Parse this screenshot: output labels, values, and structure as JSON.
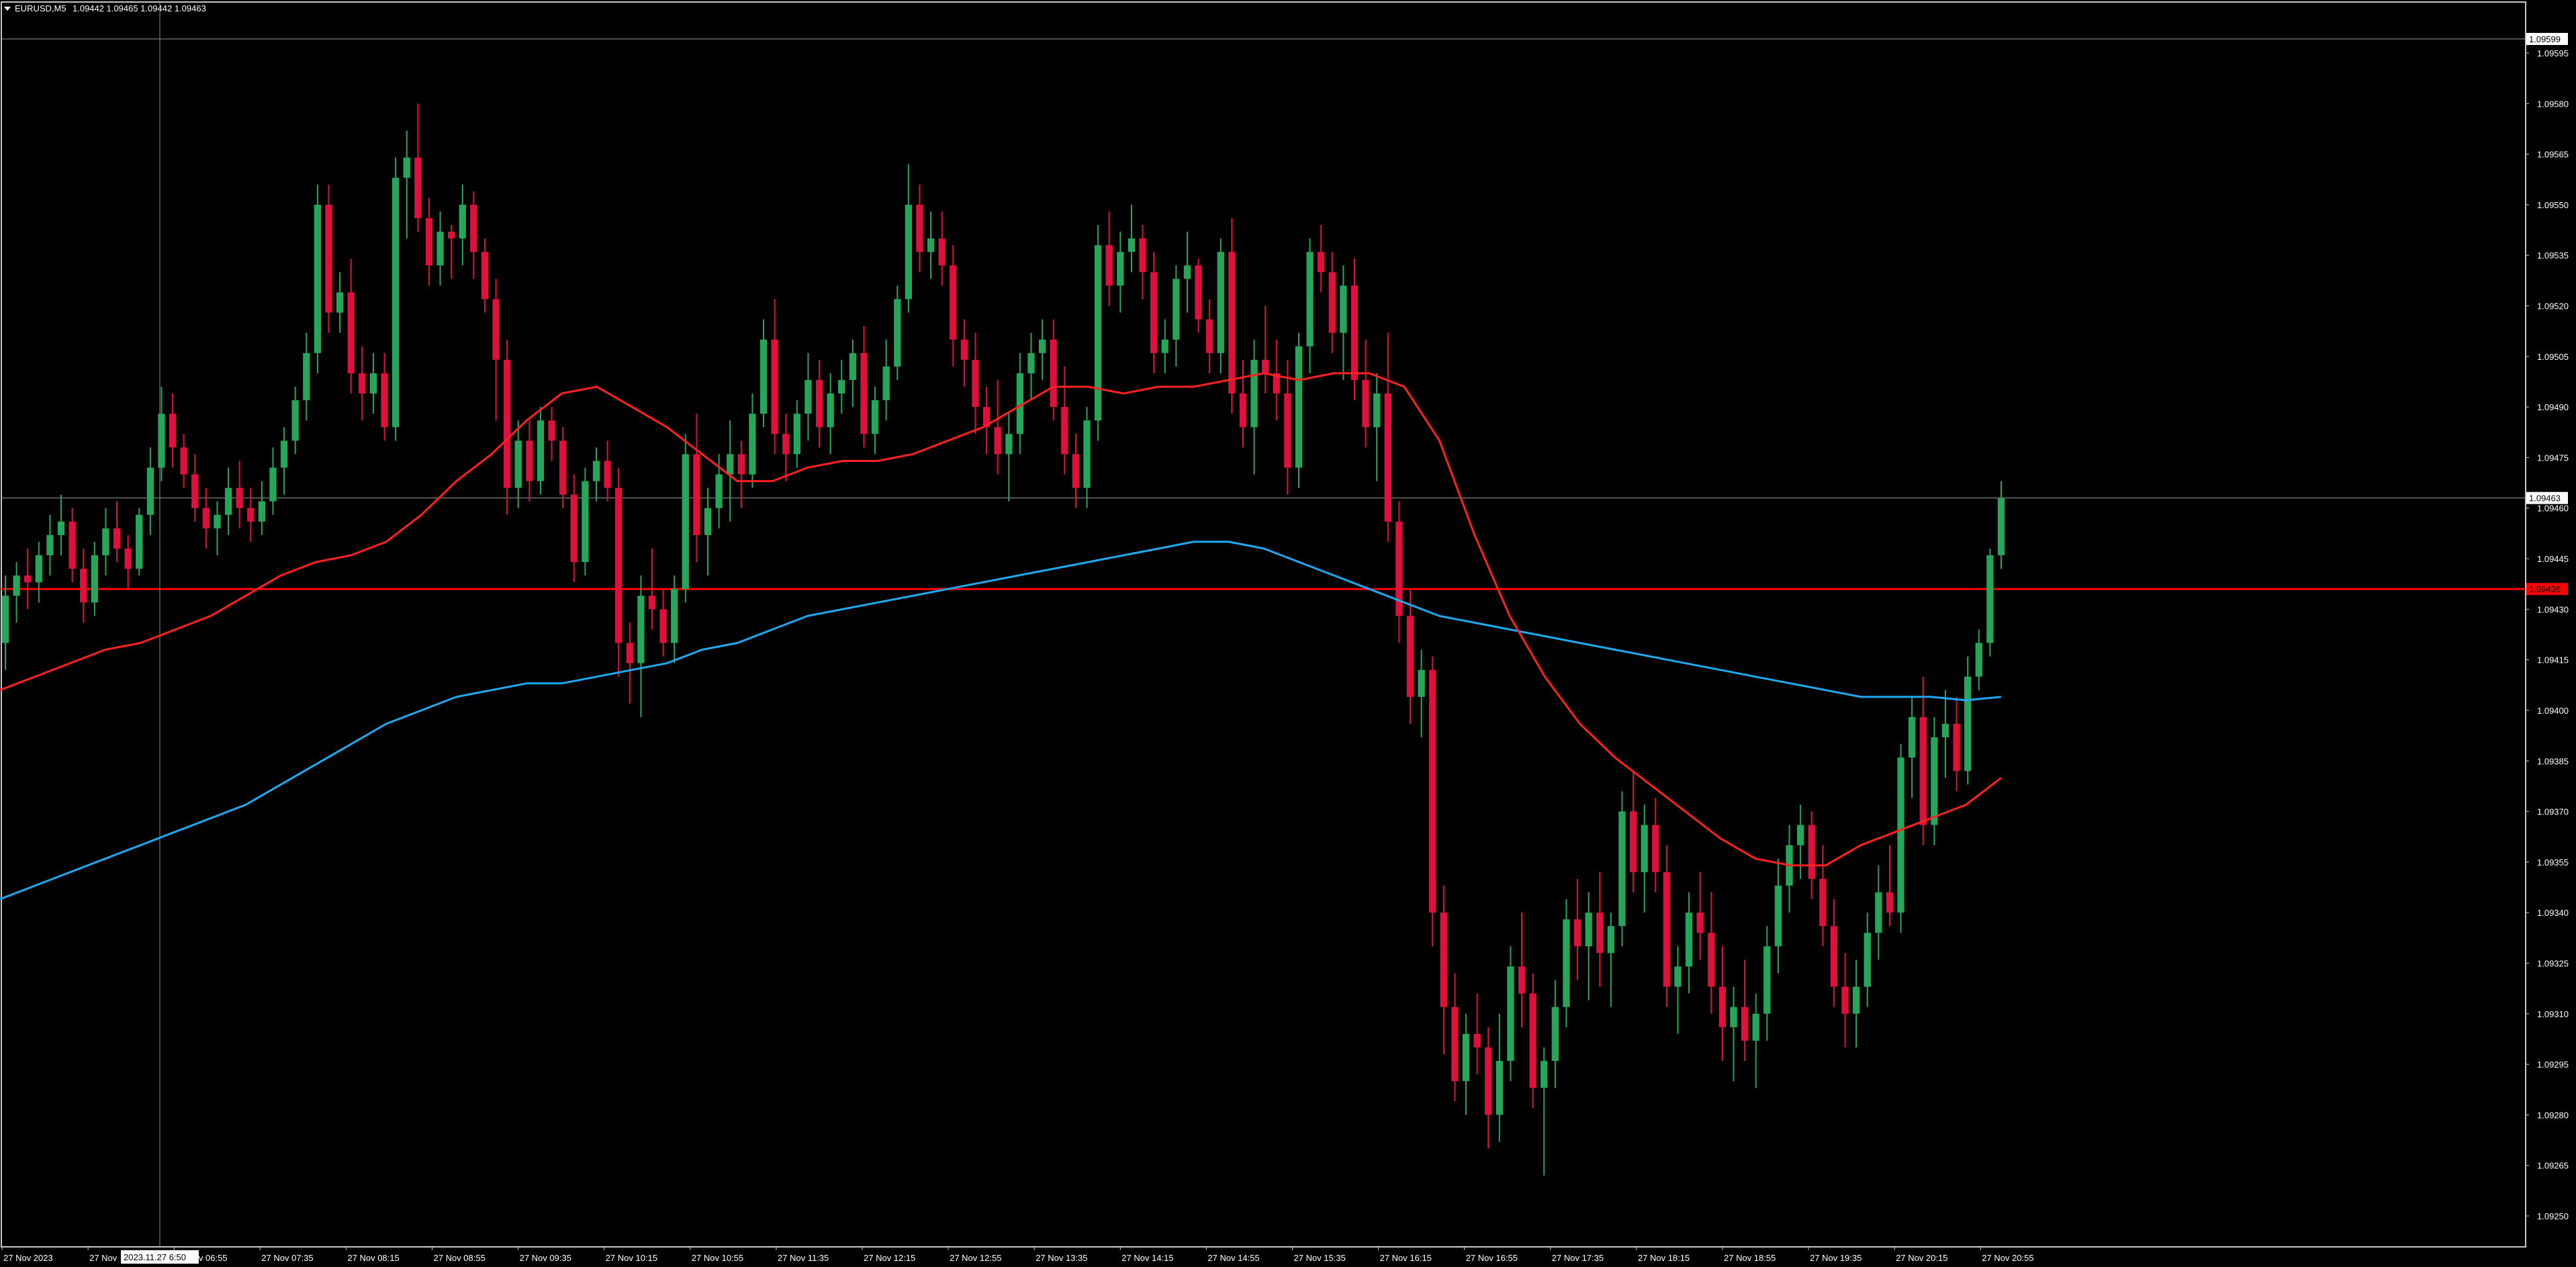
{
  "header": {
    "symbol": "EURUSD,M5",
    "ohlc": "1.09442 1.09465 1.09442 1.09463"
  },
  "colors": {
    "background": "#000000",
    "bull": "#26a65b",
    "bear": "#e0103c",
    "ma_fast": "#ff2020",
    "ma_slow": "#1eaaf0",
    "hline": "#ff0000",
    "grid_text": "#ffffff",
    "crosshair": "#8c8c8c"
  },
  "chart_data": {
    "type": "candlestick",
    "symbol": "EURUSD",
    "timeframe": "M5",
    "ylim": [
      1.09244,
      1.09602
    ],
    "y_ticks": [
      "1.09595",
      "1.09580",
      "1.09565",
      "1.09550",
      "1.09535",
      "1.09520",
      "1.09505",
      "1.09490",
      "1.09475",
      "1.09460",
      "1.09445",
      "1.09430",
      "1.09415",
      "1.09400",
      "1.09385",
      "1.09370",
      "1.09355",
      "1.09340",
      "1.09325",
      "1.09310",
      "1.09295",
      "1.09280",
      "1.09265",
      "1.09250"
    ],
    "x_ticks": [
      "27 Nov 2023",
      "27 Nov",
      "27 Nov 06:55",
      "27 Nov 07:35",
      "27 Nov 08:15",
      "27 Nov 08:55",
      "27 Nov 09:35",
      "27 Nov 10:15",
      "27 Nov 10:55",
      "27 Nov 11:35",
      "27 Nov 12:15",
      "27 Nov 12:55",
      "27 Nov 13:35",
      "27 Nov 14:15",
      "27 Nov 14:55",
      "27 Nov 15:35",
      "27 Nov 16:15",
      "27 Nov 16:55",
      "27 Nov 17:35",
      "27 Nov 18:15",
      "27 Nov 18:55",
      "27 Nov 19:35",
      "27 Nov 20:15",
      "27 Nov 20:55"
    ],
    "price_labels": {
      "top": "1.09599",
      "current": "1.09463",
      "hline": "1.09436"
    },
    "hline_price": 1.09436,
    "current_price": 1.09463,
    "crosshair_time": "2023.11.27 6:50",
    "candles": [
      [
        1.0942,
        1.0944,
        1.09412,
        1.09434
      ],
      [
        1.09434,
        1.09444,
        1.09426,
        1.0944
      ],
      [
        1.0944,
        1.09448,
        1.0943,
        1.09438
      ],
      [
        1.09438,
        1.0945,
        1.09432,
        1.09446
      ],
      [
        1.09446,
        1.09458,
        1.0944,
        1.09452
      ],
      [
        1.09452,
        1.09464,
        1.09446,
        1.09456
      ],
      [
        1.09456,
        1.0946,
        1.09438,
        1.09442
      ],
      [
        1.09442,
        1.09448,
        1.09426,
        1.09432
      ],
      [
        1.09432,
        1.0945,
        1.09428,
        1.09446
      ],
      [
        1.09446,
        1.0946,
        1.0944,
        1.09454
      ],
      [
        1.09454,
        1.09462,
        1.09444,
        1.09448
      ],
      [
        1.09448,
        1.09452,
        1.09436,
        1.09442
      ],
      [
        1.09442,
        1.0946,
        1.0944,
        1.09458
      ],
      [
        1.09458,
        1.09478,
        1.09452,
        1.09472
      ],
      [
        1.09472,
        1.09496,
        1.09468,
        1.09488
      ],
      [
        1.09488,
        1.09494,
        1.09472,
        1.09478
      ],
      [
        1.09478,
        1.09482,
        1.09466,
        1.0947
      ],
      [
        1.0947,
        1.09476,
        1.09456,
        1.0946
      ],
      [
        1.0946,
        1.09466,
        1.09448,
        1.09454
      ],
      [
        1.09454,
        1.09462,
        1.09446,
        1.09458
      ],
      [
        1.09458,
        1.09472,
        1.09452,
        1.09466
      ],
      [
        1.09466,
        1.09474,
        1.09454,
        1.0946
      ],
      [
        1.0946,
        1.09466,
        1.0945,
        1.09456
      ],
      [
        1.09456,
        1.09468,
        1.09452,
        1.09462
      ],
      [
        1.09462,
        1.09478,
        1.09458,
        1.09472
      ],
      [
        1.09472,
        1.09484,
        1.09464,
        1.0948
      ],
      [
        1.0948,
        1.09496,
        1.09476,
        1.09492
      ],
      [
        1.09492,
        1.09512,
        1.09486,
        1.09506
      ],
      [
        1.09506,
        1.09556,
        1.095,
        1.0955
      ],
      [
        1.0955,
        1.09556,
        1.09512,
        1.09518
      ],
      [
        1.09518,
        1.0953,
        1.09512,
        1.09524
      ],
      [
        1.09524,
        1.09534,
        1.09494,
        1.095
      ],
      [
        1.095,
        1.09508,
        1.09486,
        1.09494
      ],
      [
        1.09494,
        1.09506,
        1.09488,
        1.095
      ],
      [
        1.095,
        1.09506,
        1.0948,
        1.09484
      ],
      [
        1.09484,
        1.09564,
        1.0948,
        1.09558
      ],
      [
        1.09558,
        1.09572,
        1.0954,
        1.09564
      ],
      [
        1.09564,
        1.0958,
        1.09542,
        1.09546
      ],
      [
        1.09546,
        1.09552,
        1.09526,
        1.09532
      ],
      [
        1.09532,
        1.09548,
        1.09526,
        1.09542
      ],
      [
        1.09542,
        1.09544,
        1.09528,
        1.0954
      ],
      [
        1.0954,
        1.09556,
        1.09532,
        1.0955
      ],
      [
        1.0955,
        1.09554,
        1.09528,
        1.09536
      ],
      [
        1.09536,
        1.0954,
        1.09518,
        1.09522
      ],
      [
        1.09522,
        1.09528,
        1.09486,
        1.09504
      ],
      [
        1.09504,
        1.0951,
        1.09458,
        1.09466
      ],
      [
        1.09466,
        1.09486,
        1.0946,
        1.0948
      ],
      [
        1.0948,
        1.09486,
        1.09462,
        1.09468
      ],
      [
        1.09468,
        1.0949,
        1.09464,
        1.09486
      ],
      [
        1.09486,
        1.0949,
        1.09474,
        1.0948
      ],
      [
        1.0948,
        1.09484,
        1.0946,
        1.09464
      ],
      [
        1.09464,
        1.0947,
        1.09438,
        1.09444
      ],
      [
        1.09444,
        1.09472,
        1.0944,
        1.09468
      ],
      [
        1.09468,
        1.09478,
        1.09462,
        1.09474
      ],
      [
        1.09474,
        1.0948,
        1.09462,
        1.09466
      ],
      [
        1.09466,
        1.09472,
        1.0941,
        1.0942
      ],
      [
        1.0942,
        1.09426,
        1.09402,
        1.09414
      ],
      [
        1.09414,
        1.0944,
        1.09398,
        1.09434
      ],
      [
        1.09434,
        1.09448,
        1.09424,
        1.0943
      ],
      [
        1.0943,
        1.09436,
        1.09416,
        1.0942
      ],
      [
        1.0942,
        1.0944,
        1.09414,
        1.09436
      ],
      [
        1.09436,
        1.09482,
        1.09432,
        1.09476
      ],
      [
        1.09476,
        1.09488,
        1.09444,
        1.09452
      ],
      [
        1.09452,
        1.09466,
        1.0944,
        1.0946
      ],
      [
        1.0946,
        1.09476,
        1.09454,
        1.0947
      ],
      [
        1.0947,
        1.09486,
        1.09456,
        1.09476
      ],
      [
        1.09476,
        1.0948,
        1.0946,
        1.0947
      ],
      [
        1.0947,
        1.09494,
        1.09466,
        1.09488
      ],
      [
        1.09488,
        1.09516,
        1.09484,
        1.0951
      ],
      [
        1.0951,
        1.09522,
        1.09476,
        1.09482
      ],
      [
        1.09482,
        1.09488,
        1.09468,
        1.09476
      ],
      [
        1.09476,
        1.09492,
        1.09472,
        1.09488
      ],
      [
        1.09488,
        1.09506,
        1.0948,
        1.09498
      ],
      [
        1.09498,
        1.09504,
        1.09478,
        1.09484
      ],
      [
        1.09484,
        1.095,
        1.09476,
        1.09494
      ],
      [
        1.09494,
        1.09504,
        1.09488,
        1.09498
      ],
      [
        1.09498,
        1.0951,
        1.0949,
        1.09506
      ],
      [
        1.09506,
        1.09514,
        1.09478,
        1.09482
      ],
      [
        1.09482,
        1.09496,
        1.09476,
        1.09492
      ],
      [
        1.09492,
        1.0951,
        1.09486,
        1.09502
      ],
      [
        1.09502,
        1.09526,
        1.09498,
        1.09522
      ],
      [
        1.09522,
        1.09562,
        1.09518,
        1.0955
      ],
      [
        1.0955,
        1.09556,
        1.0953,
        1.09536
      ],
      [
        1.09536,
        1.09548,
        1.09528,
        1.0954
      ],
      [
        1.0954,
        1.09548,
        1.09526,
        1.09532
      ],
      [
        1.09532,
        1.09538,
        1.09502,
        1.0951
      ],
      [
        1.0951,
        1.09516,
        1.09496,
        1.09504
      ],
      [
        1.09504,
        1.09512,
        1.09482,
        1.0949
      ],
      [
        1.0949,
        1.09496,
        1.09476,
        1.09484
      ],
      [
        1.09484,
        1.09498,
        1.0947,
        1.09476
      ],
      [
        1.09476,
        1.09488,
        1.09462,
        1.09482
      ],
      [
        1.09482,
        1.09506,
        1.09476,
        1.095
      ],
      [
        1.095,
        1.09512,
        1.09492,
        1.09506
      ],
      [
        1.09506,
        1.09516,
        1.09498,
        1.0951
      ],
      [
        1.0951,
        1.09516,
        1.09486,
        1.0949
      ],
      [
        1.0949,
        1.09502,
        1.0947,
        1.09476
      ],
      [
        1.09476,
        1.09482,
        1.0946,
        1.09466
      ],
      [
        1.09466,
        1.0949,
        1.0946,
        1.09486
      ],
      [
        1.09486,
        1.09544,
        1.0948,
        1.09538
      ],
      [
        1.09538,
        1.09548,
        1.0952,
        1.09526
      ],
      [
        1.09526,
        1.09542,
        1.09518,
        1.09536
      ],
      [
        1.09536,
        1.0955,
        1.0953,
        1.0954
      ],
      [
        1.0954,
        1.09544,
        1.09522,
        1.0953
      ],
      [
        1.0953,
        1.09536,
        1.095,
        1.09506
      ],
      [
        1.09506,
        1.09516,
        1.095,
        1.0951
      ],
      [
        1.0951,
        1.09532,
        1.09502,
        1.09528
      ],
      [
        1.09528,
        1.09542,
        1.09518,
        1.09532
      ],
      [
        1.09532,
        1.09534,
        1.09512,
        1.09516
      ],
      [
        1.09516,
        1.09522,
        1.095,
        1.09506
      ],
      [
        1.09506,
        1.0954,
        1.095,
        1.09536
      ],
      [
        1.09536,
        1.09546,
        1.09488,
        1.09494
      ],
      [
        1.09494,
        1.09504,
        1.09478,
        1.09484
      ],
      [
        1.09484,
        1.0951,
        1.0947,
        1.09504
      ],
      [
        1.09504,
        1.0952,
        1.09494,
        1.095
      ],
      [
        1.095,
        1.0951,
        1.09486,
        1.09494
      ],
      [
        1.09494,
        1.09504,
        1.09464,
        1.09472
      ],
      [
        1.09472,
        1.09512,
        1.09466,
        1.09508
      ],
      [
        1.09508,
        1.0954,
        1.095,
        1.09536
      ],
      [
        1.09536,
        1.09544,
        1.09524,
        1.0953
      ],
      [
        1.0953,
        1.09536,
        1.09506,
        1.09512
      ],
      [
        1.09512,
        1.09532,
        1.09498,
        1.09526
      ],
      [
        1.09526,
        1.09534,
        1.09492,
        1.09498
      ],
      [
        1.09498,
        1.0951,
        1.09478,
        1.09484
      ],
      [
        1.09484,
        1.095,
        1.09468,
        1.09494
      ],
      [
        1.09494,
        1.09512,
        1.0945,
        1.09456
      ],
      [
        1.09456,
        1.09462,
        1.0942,
        1.09428
      ],
      [
        1.09428,
        1.09436,
        1.09396,
        1.09404
      ],
      [
        1.09404,
        1.09418,
        1.09392,
        1.09412
      ],
      [
        1.09412,
        1.09416,
        1.0933,
        1.0934
      ],
      [
        1.0934,
        1.09348,
        1.09298,
        1.09312
      ],
      [
        1.09312,
        1.09322,
        1.09284,
        1.0929
      ],
      [
        1.0929,
        1.0931,
        1.0928,
        1.09304
      ],
      [
        1.09304,
        1.09316,
        1.09292,
        1.093
      ],
      [
        1.093,
        1.09306,
        1.0927,
        1.0928
      ],
      [
        1.0928,
        1.0931,
        1.09272,
        1.09296
      ],
      [
        1.09296,
        1.0933,
        1.0929,
        1.09324
      ],
      [
        1.09324,
        1.0934,
        1.09306,
        1.09316
      ],
      [
        1.09316,
        1.09322,
        1.09282,
        1.09288
      ],
      [
        1.09288,
        1.093,
        1.09262,
        1.09296
      ],
      [
        1.09296,
        1.0932,
        1.09288,
        1.09312
      ],
      [
        1.09312,
        1.09344,
        1.09306,
        1.09338
      ],
      [
        1.09338,
        1.0935,
        1.0932,
        1.0933
      ],
      [
        1.0933,
        1.09346,
        1.09314,
        1.0934
      ],
      [
        1.0934,
        1.09352,
        1.09318,
        1.09328
      ],
      [
        1.09328,
        1.0934,
        1.09312,
        1.09336
      ],
      [
        1.09336,
        1.09376,
        1.0933,
        1.0937
      ],
      [
        1.0937,
        1.09382,
        1.09346,
        1.09352
      ],
      [
        1.09352,
        1.09372,
        1.0934,
        1.09366
      ],
      [
        1.09366,
        1.09374,
        1.09346,
        1.09352
      ],
      [
        1.09352,
        1.0936,
        1.09312,
        1.09318
      ],
      [
        1.09318,
        1.0933,
        1.09304,
        1.09324
      ],
      [
        1.09324,
        1.09346,
        1.09316,
        1.0934
      ],
      [
        1.0934,
        1.09352,
        1.09326,
        1.09334
      ],
      [
        1.09334,
        1.09346,
        1.0931,
        1.09318
      ],
      [
        1.09318,
        1.0933,
        1.09296,
        1.09306
      ],
      [
        1.09306,
        1.09318,
        1.0929,
        1.09312
      ],
      [
        1.09312,
        1.09326,
        1.09296,
        1.09302
      ],
      [
        1.09302,
        1.09316,
        1.09288,
        1.0931
      ],
      [
        1.0931,
        1.09336,
        1.09302,
        1.0933
      ],
      [
        1.0933,
        1.09356,
        1.09322,
        1.09348
      ],
      [
        1.09348,
        1.09366,
        1.0934,
        1.0936
      ],
      [
        1.0936,
        1.09372,
        1.0935,
        1.09366
      ],
      [
        1.09366,
        1.0937,
        1.09344,
        1.0935
      ],
      [
        1.0935,
        1.0936,
        1.0933,
        1.09336
      ],
      [
        1.09336,
        1.09344,
        1.09312,
        1.09318
      ],
      [
        1.09318,
        1.09328,
        1.093,
        1.0931
      ],
      [
        1.0931,
        1.09326,
        1.093,
        1.09318
      ],
      [
        1.09318,
        1.0934,
        1.09312,
        1.09334
      ],
      [
        1.09334,
        1.09354,
        1.09326,
        1.09346
      ],
      [
        1.09346,
        1.0936,
        1.09336,
        1.0934
      ],
      [
        1.0934,
        1.0939,
        1.09334,
        1.09386
      ],
      [
        1.09386,
        1.09404,
        1.09374,
        1.09398
      ],
      [
        1.09398,
        1.0941,
        1.0936,
        1.09366
      ],
      [
        1.09366,
        1.09398,
        1.0936,
        1.09392
      ],
      [
        1.09392,
        1.09406,
        1.0938,
        1.09396
      ],
      [
        1.09396,
        1.09404,
        1.09376,
        1.09382
      ],
      [
        1.09382,
        1.09416,
        1.09378,
        1.0941
      ],
      [
        1.0941,
        1.09424,
        1.09406,
        1.0942
      ],
      [
        1.0942,
        1.09448,
        1.09416,
        1.09446
      ],
      [
        1.09446,
        1.09468,
        1.09442,
        1.09463
      ]
    ],
    "ma_fast": [
      1.09406,
      1.0941,
      1.09414,
      1.09418,
      1.0942,
      1.09424,
      1.09428,
      1.09434,
      1.0944,
      1.09444,
      1.09446,
      1.0945,
      1.09458,
      1.09468,
      1.09476,
      1.09486,
      1.09494,
      1.09496,
      1.0949,
      1.09484,
      1.09476,
      1.09468,
      1.09468,
      1.09472,
      1.09474,
      1.09474,
      1.09476,
      1.0948,
      1.09484,
      1.0949,
      1.09496,
      1.09496,
      1.09494,
      1.09496,
      1.09496,
      1.09498,
      1.095,
      1.09498,
      1.095,
      1.095,
      1.09496,
      1.0948,
      1.09452,
      1.09428,
      1.0941,
      1.09396,
      1.09386,
      1.09378,
      1.0937,
      1.09362,
      1.09356,
      1.09354,
      1.09354,
      1.0936,
      1.09364,
      1.09368,
      1.09372,
      1.0938
    ],
    "ma_slow": [
      1.09344,
      1.09348,
      1.09352,
      1.09356,
      1.0936,
      1.09364,
      1.09368,
      1.09372,
      1.09378,
      1.09384,
      1.0939,
      1.09396,
      1.094,
      1.09404,
      1.09406,
      1.09408,
      1.09408,
      1.0941,
      1.09412,
      1.09414,
      1.09418,
      1.0942,
      1.09424,
      1.09428,
      1.0943,
      1.09432,
      1.09434,
      1.09436,
      1.09438,
      1.0944,
      1.09442,
      1.09444,
      1.09446,
      1.09448,
      1.0945,
      1.0945,
      1.09448,
      1.09444,
      1.0944,
      1.09436,
      1.09432,
      1.09428,
      1.09426,
      1.09424,
      1.09422,
      1.0942,
      1.09418,
      1.09416,
      1.09414,
      1.09412,
      1.0941,
      1.09408,
      1.09406,
      1.09404,
      1.09404,
      1.09404,
      1.09403,
      1.09404
    ]
  }
}
